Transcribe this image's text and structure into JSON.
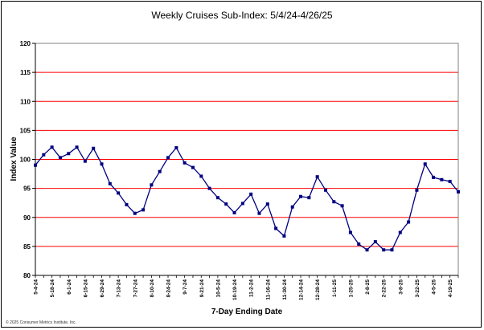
{
  "colors": {
    "gridline": "#ff0000",
    "plot_border": "#808080",
    "series": "#000080"
  },
  "chart_data": {
    "type": "line",
    "title": "Weekly Cruises Sub-Index: 5/4/24-4/26/25",
    "xlabel": "7-Day Ending Date",
    "ylabel": "Index Value",
    "ylim": [
      80,
      120
    ],
    "yticks": [
      80,
      85,
      90,
      95,
      100,
      105,
      110,
      115,
      120
    ],
    "grid": true,
    "x_tick_labels": [
      "5-4-24",
      "5-18-24",
      "6-1-24",
      "6-15-24",
      "6-29-24",
      "7-13-24",
      "7-27-24",
      "8-10-24",
      "8-24-24",
      "9-7-24",
      "9-21-24",
      "10-5-24",
      "10-19-24",
      "11-2-24",
      "11-16-24",
      "11-30-24",
      "12-14-24",
      "12-28-24",
      "1-11-25",
      "1-25-25",
      "2-8-25",
      "2-22-25",
      "3-8-25",
      "3-22-25",
      "4-5-25",
      "4-19-25"
    ],
    "values": [
      99,
      100.8,
      102.1,
      100.3,
      101,
      102.1,
      99.7,
      101.9,
      99.2,
      95.8,
      94.2,
      92.2,
      90.7,
      91.3,
      95.6,
      97.9,
      100.3,
      102,
      99.4,
      98.6,
      97.1,
      95,
      93.4,
      92.3,
      90.8,
      92.4,
      94,
      90.7,
      92.3,
      88.1,
      86.8,
      91.8,
      93.6,
      93.4,
      97,
      94.7,
      92.7,
      92,
      87.4,
      85.4,
      84.4,
      85.8,
      84.4,
      84.4,
      87.4,
      89.2,
      94.7,
      99.2,
      96.9,
      96.5,
      96.2,
      94.4
    ]
  },
  "footer": {
    "copyright": "© 2025 Consumer Metrics Institute, Inc."
  }
}
